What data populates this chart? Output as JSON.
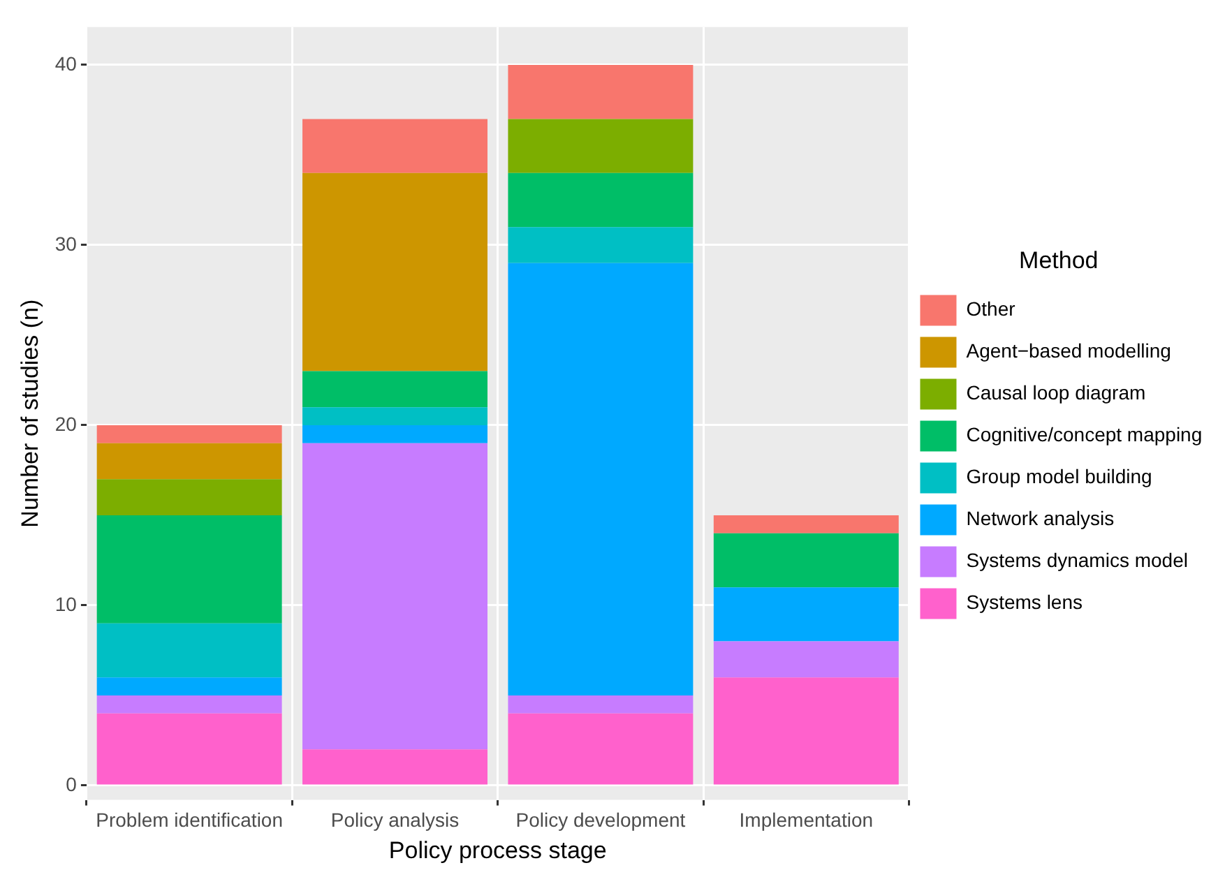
{
  "chart_data": {
    "type": "bar",
    "stacked": true,
    "xlabel": "Policy process stage",
    "ylabel": "Number of studies (n)",
    "legend_title": "Method",
    "legend": "right",
    "grid": true,
    "categories": [
      "Problem identification",
      "Policy analysis",
      "Policy development",
      "Implementation"
    ],
    "ylim": [
      -0.8,
      42.1
    ],
    "yticks": [
      0,
      10,
      20,
      30,
      40
    ],
    "series": [
      {
        "name": "Systems lens",
        "color": "#ff61cc",
        "values": [
          4,
          2,
          4,
          6
        ]
      },
      {
        "name": "Systems dynamics model",
        "color": "#c77cff",
        "values": [
          1,
          17,
          1,
          2
        ]
      },
      {
        "name": "Network analysis",
        "color": "#00a9ff",
        "values": [
          1,
          1,
          24,
          3
        ]
      },
      {
        "name": "Group model building",
        "color": "#00bfc4",
        "values": [
          3,
          1,
          2,
          0
        ]
      },
      {
        "name": "Cognitive/concept mapping",
        "color": "#00be67",
        "values": [
          6,
          2,
          3,
          3
        ]
      },
      {
        "name": "Causal loop diagram",
        "color": "#7cae00",
        "values": [
          2,
          0,
          3,
          0
        ]
      },
      {
        "name": "Agent−based modelling",
        "color": "#cd9600",
        "values": [
          2,
          11,
          0,
          0
        ]
      },
      {
        "name": "Other",
        "color": "#f8766d",
        "values": [
          1,
          3,
          3,
          1
        ]
      }
    ]
  }
}
